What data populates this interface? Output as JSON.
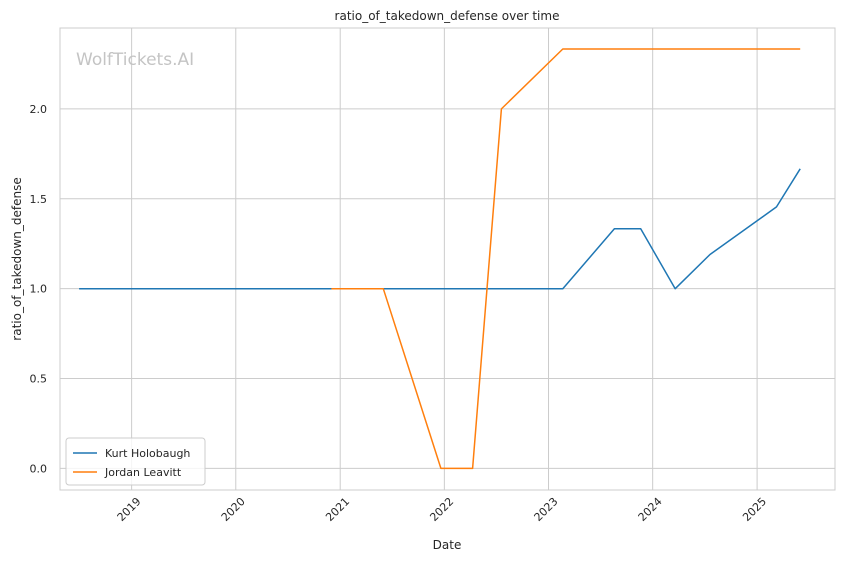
{
  "chart_data": {
    "type": "line",
    "title": "ratio_of_takedown_defense over time",
    "xlabel": "Date",
    "ylabel": "ratio_of_takedown_defense",
    "watermark": "WolfTickets.AI",
    "x_ticks": [
      "2019",
      "2020",
      "2021",
      "2022",
      "2023",
      "2024",
      "2025"
    ],
    "y_ticks": [
      "0.0",
      "0.5",
      "1.0",
      "1.5",
      "2.0"
    ],
    "xlim": [
      "2018-04-25",
      "2025-10-01"
    ],
    "ylim": [
      -0.12,
      2.45
    ],
    "grid": true,
    "legend_position": "lower-left",
    "series": [
      {
        "name": "Kurt Holobaugh",
        "color": "#1f77b4",
        "points": [
          [
            "2018-07-01",
            1.0
          ],
          [
            "2023-02-20",
            1.0
          ],
          [
            "2023-08-20",
            1.333
          ],
          [
            "2023-11-20",
            1.333
          ],
          [
            "2024-03-20",
            1.0
          ],
          [
            "2024-07-20",
            1.19
          ],
          [
            "2025-03-10",
            1.455
          ],
          [
            "2025-06-01",
            1.667
          ]
        ]
      },
      {
        "name": "Jordan Leavitt",
        "color": "#ff7f0e",
        "points": [
          [
            "2020-12-01",
            1.0
          ],
          [
            "2021-06-01",
            1.0
          ],
          [
            "2021-12-20",
            0.0
          ],
          [
            "2022-04-10",
            0.0
          ],
          [
            "2022-07-20",
            2.0
          ],
          [
            "2023-02-20",
            2.333
          ],
          [
            "2025-06-01",
            2.333
          ]
        ]
      }
    ]
  }
}
